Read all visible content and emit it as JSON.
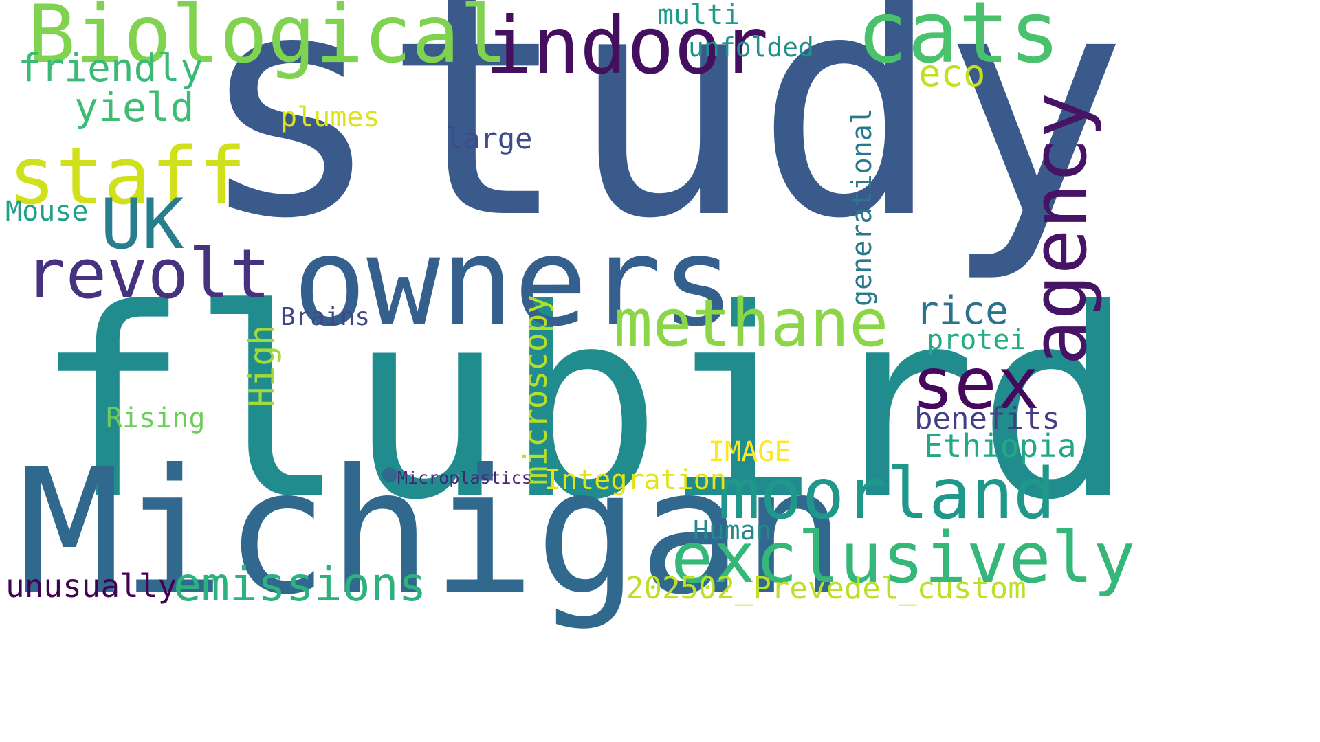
{
  "words": [
    {
      "text": "study",
      "color": "#3b5a8c"
    },
    {
      "text": "flubird",
      "color": "#218c8d"
    },
    {
      "text": "Michigan",
      "color": "#31688e"
    },
    {
      "text": "owners",
      "color": "#35608d"
    },
    {
      "text": "Biological",
      "color": "#7fd34e"
    },
    {
      "text": "indoor",
      "color": "#440f5f"
    },
    {
      "text": "cats",
      "color": "#4ac16d"
    },
    {
      "text": "staff",
      "color": "#d0e11c"
    },
    {
      "text": "UK",
      "color": "#287d8e"
    },
    {
      "text": "revolt",
      "color": "#46327e"
    },
    {
      "text": "methane",
      "color": "#8bd646"
    },
    {
      "text": "agency",
      "color": "#471365"
    },
    {
      "text": "sex",
      "color": "#46085c"
    },
    {
      "text": "moorland",
      "color": "#1f988b"
    },
    {
      "text": "exclusively",
      "color": "#35b779"
    },
    {
      "text": "emissions",
      "color": "#2db27d"
    },
    {
      "text": "friendly",
      "color": "#3aba76"
    },
    {
      "text": "yield",
      "color": "#3fbc73"
    },
    {
      "text": "eco",
      "color": "#c2df23"
    },
    {
      "text": "multi",
      "color": "#1e9b8a"
    },
    {
      "text": "unfolded",
      "color": "#21918c"
    },
    {
      "text": "plumes",
      "color": "#dde318"
    },
    {
      "text": "large",
      "color": "#3e4a89"
    },
    {
      "text": "generational",
      "color": "#2a788e"
    },
    {
      "text": "Mouse",
      "color": "#1fa088"
    },
    {
      "text": "High",
      "color": "#a2da37"
    },
    {
      "text": "Brains",
      "color": "#3f4788"
    },
    {
      "text": "microscopy",
      "color": "#b5de2b"
    },
    {
      "text": "rice",
      "color": "#2c718e"
    },
    {
      "text": "protei",
      "color": "#25ab82"
    },
    {
      "text": "benefits",
      "color": "#433e85"
    },
    {
      "text": "Ethiopia",
      "color": "#22a884"
    },
    {
      "text": "Rising",
      "color": "#6ccd5a"
    },
    {
      "text": "IMAGE",
      "color": "#fde725"
    },
    {
      "text": "Microplastics",
      "color": "#482475"
    },
    {
      "text": "Integration",
      "color": "#e2e418"
    },
    {
      "text": "Human",
      "color": "#23898e"
    },
    {
      "text": "unusually",
      "color": "#440154"
    },
    {
      "text": "202502_Prevedel_custom",
      "color": "#bddf26"
    }
  ],
  "dot_color": "#31688e"
}
